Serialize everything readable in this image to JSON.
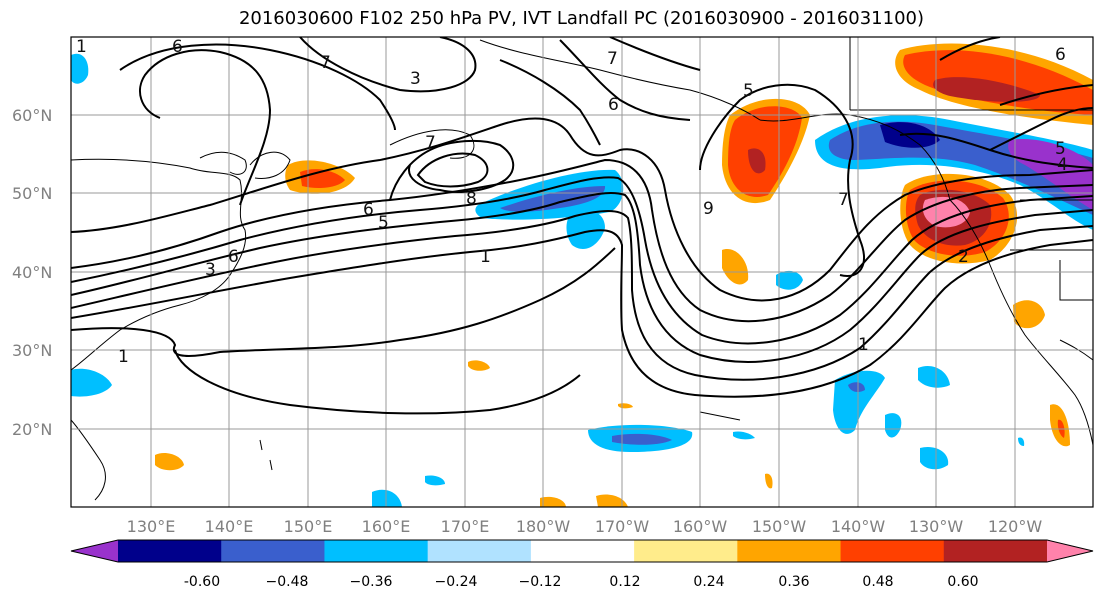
{
  "title": "2016030600 F102 250 hPa PV, IVT Landfall PC (2016030900 - 2016031100)",
  "lat_labels": [
    "60°N",
    "50°N",
    "40°N",
    "30°N",
    "20°N"
  ],
  "lon_labels": [
    "130°E",
    "140°E",
    "150°E",
    "160°E",
    "170°E",
    "180°W",
    "170°W",
    "160°W",
    "150°W",
    "140°W",
    "130°W",
    "120°W"
  ],
  "contour_labels": [
    "6",
    "7",
    "3",
    "7",
    "6",
    "5",
    "7",
    "8",
    "6",
    "5",
    "3",
    "1",
    "1",
    "9",
    "7",
    "5",
    "4",
    "1",
    "2",
    "1",
    "6",
    "6"
  ],
  "colorbar": {
    "ticks": [
      "-0.60",
      "−0.48",
      "−0.36",
      "−0.24",
      "−0.12",
      "0.12",
      "0.24",
      "0.36",
      "0.48",
      "0.60"
    ],
    "colors": [
      "#9932cc",
      "#00008b",
      "#3a5fcd",
      "#00bfff",
      "#b0e2ff",
      "#ffffff",
      "#ffec8b",
      "#ffa500",
      "#ff4000",
      "#b22222",
      "#ff82ab"
    ]
  }
}
